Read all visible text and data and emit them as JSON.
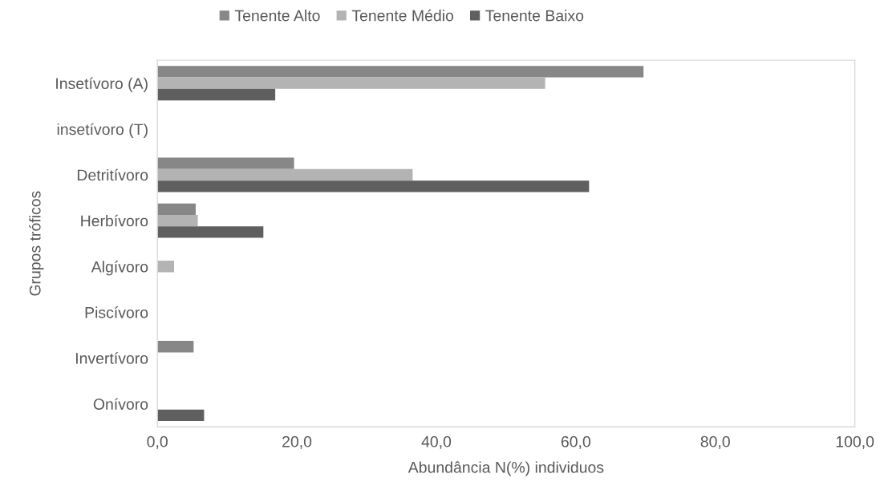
{
  "chart_data": {
    "type": "bar",
    "orientation": "horizontal",
    "xlabel": "Abundância N(%) individuos",
    "ylabel": "Grupos tróficos",
    "categories": [
      "Insetívoro (A)",
      "insetívoro (T)",
      "Detritívoro",
      "Herbívoro",
      "Algívoro",
      "Piscívoro",
      "Invertívoro",
      "Onívoro"
    ],
    "series": [
      {
        "name": "Tenente Alto",
        "color": "#878787",
        "values": [
          69.7,
          null,
          19.6,
          5.5,
          null,
          null,
          5.2,
          null
        ]
      },
      {
        "name": "Tenente Médio",
        "color": "#b3b3b3",
        "values": [
          55.6,
          null,
          36.6,
          5.8,
          2.4,
          null,
          null,
          null
        ]
      },
      {
        "name": "Tenente Baixo",
        "color": "#5f5f5f",
        "values": [
          16.9,
          null,
          61.9,
          15.2,
          null,
          null,
          null,
          6.7
        ]
      }
    ],
    "xlim": [
      0,
      100
    ],
    "xticks": [
      {
        "value": 0,
        "label": "0,0"
      },
      {
        "value": 20,
        "label": "20,0"
      },
      {
        "value": 40,
        "label": "40,0"
      },
      {
        "value": 60,
        "label": "60,0"
      },
      {
        "value": 80,
        "label": "80,0"
      },
      {
        "value": 100,
        "label": "100,0"
      }
    ],
    "grid": false,
    "legend": "top"
  }
}
